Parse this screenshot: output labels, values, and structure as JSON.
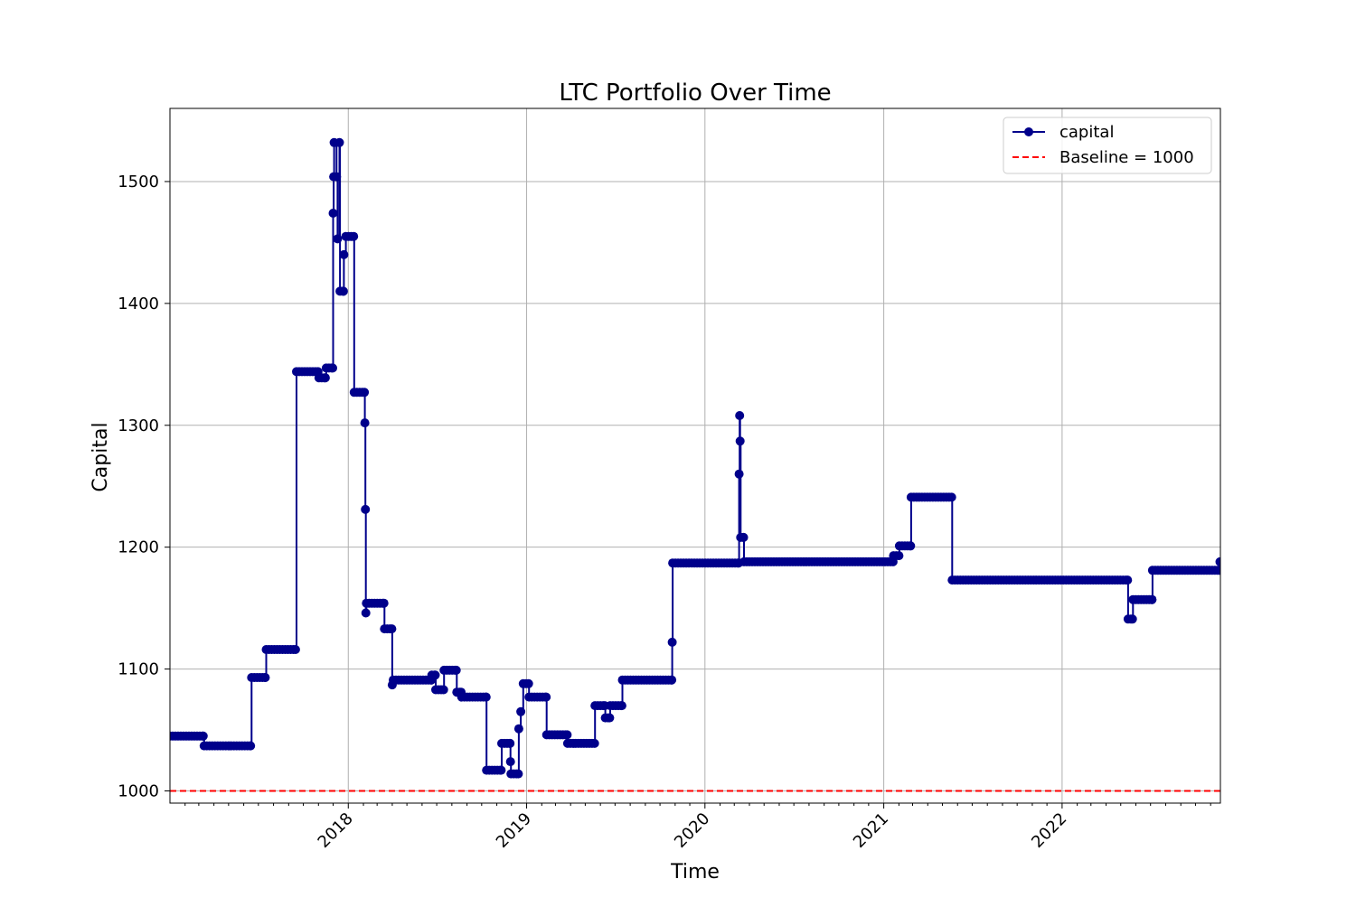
{
  "chart_data": {
    "type": "line",
    "title": "LTC Portfolio Over Time",
    "xlabel": "Time",
    "ylabel": "Capital",
    "xlim": [
      "2017-01-01",
      "2022-11-21"
    ],
    "ylim": [
      990,
      1560
    ],
    "x_tick_labels": [
      "2018",
      "2019",
      "2020",
      "2021",
      "2022"
    ],
    "x_ticks": [
      "2018-01-01",
      "2019-01-01",
      "2020-01-01",
      "2021-01-01",
      "2022-01-01"
    ],
    "y_ticks": [
      1000,
      1100,
      1200,
      1300,
      1400,
      1500
    ],
    "grid": true,
    "legend_position": "top-right",
    "series": [
      {
        "name": "capital",
        "color": "#00008b",
        "marker": "circle",
        "drawstyle": "steps",
        "points": [
          [
            "2017-01-01",
            1045
          ],
          [
            "2017-03-10",
            1045
          ],
          [
            "2017-03-12",
            1037
          ],
          [
            "2017-06-15",
            1037
          ],
          [
            "2017-06-17",
            1093
          ],
          [
            "2017-07-15",
            1093
          ],
          [
            "2017-07-17",
            1116
          ],
          [
            "2017-09-15",
            1116
          ],
          [
            "2017-09-17",
            1344
          ],
          [
            "2017-10-31",
            1344
          ],
          [
            "2017-11-02",
            1339
          ],
          [
            "2017-11-15",
            1339
          ],
          [
            "2017-11-17",
            1347
          ],
          [
            "2017-11-30",
            1347
          ],
          [
            "2017-12-01",
            1474
          ],
          [
            "2017-12-02",
            1504
          ],
          [
            "2017-12-03",
            1532
          ],
          [
            "2017-12-08",
            1504
          ],
          [
            "2017-12-10",
            1453
          ],
          [
            "2017-12-14",
            1532
          ],
          [
            "2017-12-15",
            1410
          ],
          [
            "2017-12-22",
            1410
          ],
          [
            "2017-12-23",
            1440
          ],
          [
            "2017-12-27",
            1455
          ],
          [
            "2018-01-12",
            1455
          ],
          [
            "2018-01-13",
            1327
          ],
          [
            "2018-02-03",
            1327
          ],
          [
            "2018-02-04",
            1302
          ],
          [
            "2018-02-05",
            1231
          ],
          [
            "2018-02-06",
            1146
          ],
          [
            "2018-02-07",
            1154
          ],
          [
            "2018-03-15",
            1154
          ],
          [
            "2018-03-16",
            1133
          ],
          [
            "2018-03-31",
            1133
          ],
          [
            "2018-04-01",
            1087
          ],
          [
            "2018-04-03",
            1091
          ],
          [
            "2018-06-20",
            1091
          ],
          [
            "2018-06-21",
            1095
          ],
          [
            "2018-06-28",
            1095
          ],
          [
            "2018-06-29",
            1083
          ],
          [
            "2018-07-15",
            1083
          ],
          [
            "2018-07-16",
            1099
          ],
          [
            "2018-08-10",
            1099
          ],
          [
            "2018-08-11",
            1081
          ],
          [
            "2018-08-20",
            1081
          ],
          [
            "2018-08-21",
            1077
          ],
          [
            "2018-10-10",
            1077
          ],
          [
            "2018-10-11",
            1017
          ],
          [
            "2018-11-10",
            1017
          ],
          [
            "2018-11-11",
            1039
          ],
          [
            "2018-11-28",
            1039
          ],
          [
            "2018-11-29",
            1024
          ],
          [
            "2018-11-30",
            1014
          ],
          [
            "2018-12-15",
            1014
          ],
          [
            "2018-12-16",
            1051
          ],
          [
            "2018-12-20",
            1065
          ],
          [
            "2018-12-25",
            1088
          ],
          [
            "2019-01-05",
            1088
          ],
          [
            "2019-01-06",
            1077
          ],
          [
            "2019-02-10",
            1077
          ],
          [
            "2019-02-11",
            1046
          ],
          [
            "2019-03-25",
            1046
          ],
          [
            "2019-03-26",
            1039
          ],
          [
            "2019-05-20",
            1039
          ],
          [
            "2019-05-21",
            1070
          ],
          [
            "2019-06-10",
            1070
          ],
          [
            "2019-06-11",
            1060
          ],
          [
            "2019-06-20",
            1060
          ],
          [
            "2019-06-21",
            1070
          ],
          [
            "2019-07-15",
            1070
          ],
          [
            "2019-07-16",
            1091
          ],
          [
            "2019-10-25",
            1091
          ],
          [
            "2019-10-26",
            1122
          ],
          [
            "2019-10-27",
            1187
          ],
          [
            "2020-03-10",
            1187
          ],
          [
            "2020-03-11",
            1260
          ],
          [
            "2020-03-12",
            1308
          ],
          [
            "2020-03-13",
            1287
          ],
          [
            "2020-03-14",
            1208
          ],
          [
            "2020-03-20",
            1208
          ],
          [
            "2020-03-21",
            1188
          ],
          [
            "2021-01-20",
            1188
          ],
          [
            "2021-01-21",
            1193
          ],
          [
            "2021-02-01",
            1193
          ],
          [
            "2021-02-02",
            1201
          ],
          [
            "2021-02-25",
            1201
          ],
          [
            "2021-02-26",
            1241
          ],
          [
            "2021-05-20",
            1241
          ],
          [
            "2021-05-21",
            1173
          ],
          [
            "2022-05-15",
            1173
          ],
          [
            "2022-05-16",
            1141
          ],
          [
            "2022-05-25",
            1141
          ],
          [
            "2022-05-26",
            1157
          ],
          [
            "2022-07-04",
            1157
          ],
          [
            "2022-07-05",
            1181
          ],
          [
            "2022-11-19",
            1181
          ],
          [
            "2022-11-20",
            1188
          ]
        ]
      },
      {
        "name": "Baseline = 1000",
        "color": "#ff0000",
        "style": "dashed",
        "constant": 1000
      }
    ]
  }
}
